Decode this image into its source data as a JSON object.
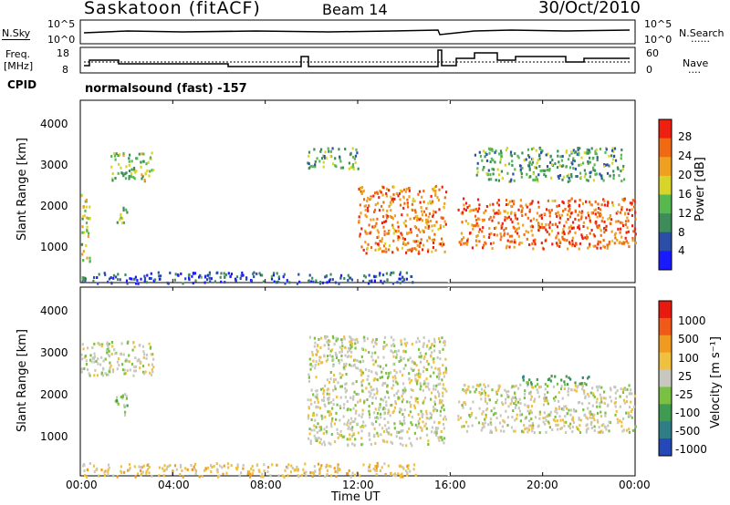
{
  "header": {
    "station": "Saskatoon (fitACF)",
    "beam": "Beam 14",
    "date": "30/Oct/2010"
  },
  "top_panels": {
    "nsky_label": "N.Sky",
    "nsky_ticks": [
      "10^5",
      "10^0"
    ],
    "nsearch_label": "N.Search",
    "freq_label_1": "Freq.",
    "freq_label_2": "[MHz]",
    "freq_ticks": [
      "18",
      "8"
    ],
    "nave_label": "Nave",
    "nave_ticks": [
      "60",
      "0"
    ],
    "cpid_label": "CPID",
    "cpid_text": "normalsound (fast) -157"
  },
  "x_axis": {
    "label": "Time UT",
    "ticks": [
      "00:00",
      "04:00",
      "08:00",
      "12:00",
      "16:00",
      "20:00",
      "00:00"
    ]
  },
  "power_panel": {
    "ylabel": "Slant Range [km]",
    "yticks": [
      "1000",
      "2000",
      "3000",
      "4000"
    ],
    "colorbar_label": "Power [dB]",
    "colorbar_ticks": [
      "4",
      "8",
      "12",
      "16",
      "20",
      "24",
      "28"
    ],
    "colors": [
      "#1a1aff",
      "#2b4fa8",
      "#3d8c5a",
      "#56b84e",
      "#d7d42a",
      "#f0a020",
      "#f06a14",
      "#f02010"
    ]
  },
  "velocity_panel": {
    "ylabel": "Slant Range [km]",
    "yticks": [
      "1000",
      "2000",
      "3000",
      "4000"
    ],
    "colorbar_label": "Velocity [m s⁻¹]",
    "colorbar_ticks": [
      "1000",
      "500",
      "100",
      "25",
      "-25",
      "-100",
      "-500",
      "-1000"
    ],
    "colors": [
      "#2448b8",
      "#2f7e86",
      "#3f9a52",
      "#7ac143",
      "#c8c8c0",
      "#f0c040",
      "#f09a20",
      "#f05a18",
      "#e81a10"
    ]
  },
  "chart_data": {
    "type": "heatmap",
    "x_range_hours": [
      0,
      24
    ],
    "y_range_km": [
      180,
      4500
    ],
    "power_regions": [
      {
        "t": [
          0.0,
          0.4
        ],
        "r": [
          600,
          2300
        ],
        "level": 0.55
      },
      {
        "t": [
          1.3,
          3.2
        ],
        "r": [
          2600,
          3300
        ],
        "level": 0.45
      },
      {
        "t": [
          1.5,
          2.0
        ],
        "r": [
          1600,
          2000
        ],
        "level": 0.4
      },
      {
        "t": [
          0.0,
          14.5
        ],
        "r": [
          180,
          450
        ],
        "level": 0.15
      },
      {
        "t": [
          9.8,
          12.0
        ],
        "r": [
          2900,
          3400
        ],
        "level": 0.35
      },
      {
        "t": [
          12.0,
          15.8
        ],
        "r": [
          900,
          2500
        ],
        "level": 0.8
      },
      {
        "t": [
          16.3,
          24.0
        ],
        "r": [
          1000,
          2200
        ],
        "level": 0.85
      },
      {
        "t": [
          17.0,
          23.5
        ],
        "r": [
          2600,
          3400
        ],
        "level": 0.35
      }
    ],
    "velocity_regions": [
      {
        "t": [
          0.0,
          3.2
        ],
        "r": [
          2500,
          3300
        ],
        "level": 0.0
      },
      {
        "t": [
          1.3,
          2.0
        ],
        "r": [
          1600,
          2100
        ],
        "level": 0.3
      },
      {
        "t": [
          0.0,
          14.5
        ],
        "r": [
          180,
          500
        ],
        "level": -0.3
      },
      {
        "t": [
          9.8,
          15.8
        ],
        "r": [
          900,
          3400
        ],
        "level": 0.0
      },
      {
        "t": [
          16.3,
          24.0
        ],
        "r": [
          1200,
          2300
        ],
        "level": 0.0
      },
      {
        "t": [
          19.0,
          22.0
        ],
        "r": [
          2300,
          2500
        ],
        "level": 0.4
      }
    ]
  }
}
